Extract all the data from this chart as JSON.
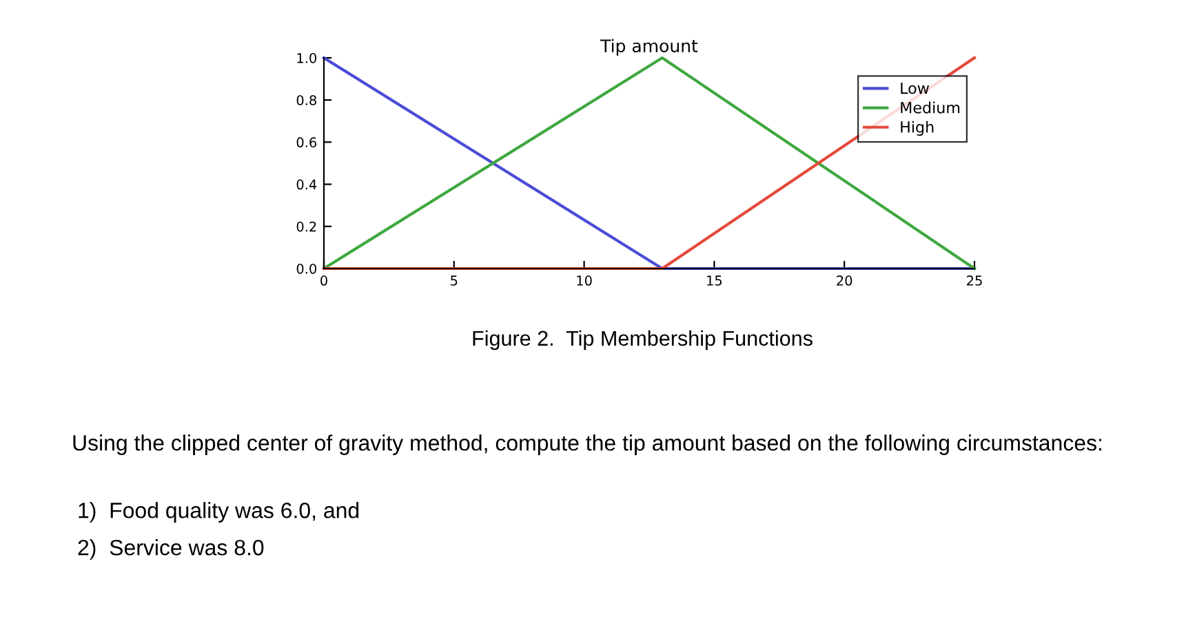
{
  "chart_data": {
    "type": "line",
    "title": "Tip amount",
    "x": [
      0,
      13,
      25
    ],
    "series": [
      {
        "name": "Low",
        "color": "#4c4cd8",
        "values": [
          1.0,
          0,
          0
        ]
      },
      {
        "name": "Medium",
        "color": "#3fa83f",
        "values": [
          0,
          1.0,
          0
        ]
      },
      {
        "name": "High",
        "color": "#e5493a",
        "values": [
          0,
          0,
          1.0
        ]
      }
    ],
    "xlim": [
      0,
      25
    ],
    "xticks": [
      0,
      5,
      10,
      15,
      20,
      25
    ],
    "ylim": [
      0,
      1.0
    ],
    "yticks": [
      {
        "value": 0,
        "label": "0.0"
      },
      {
        "value": 0.2,
        "label": "0.2"
      },
      {
        "value": 0.4,
        "label": "0.4"
      },
      {
        "value": 0.6,
        "label": "0.6"
      },
      {
        "value": 0.8,
        "label": "0.8"
      },
      {
        "value": 1.0,
        "label": "1.0"
      }
    ],
    "grid": false,
    "legend": "top right",
    "marker": "none",
    "line_style": "solid",
    "annotations": [
      "Figure 2.  Tip Membership Functions",
      "Using the clipped center of gravity method, compute the tip amount based on the following circumstances:",
      "1)  Food quality was 6.0, and",
      "2)  Service was 8.0"
    ]
  }
}
